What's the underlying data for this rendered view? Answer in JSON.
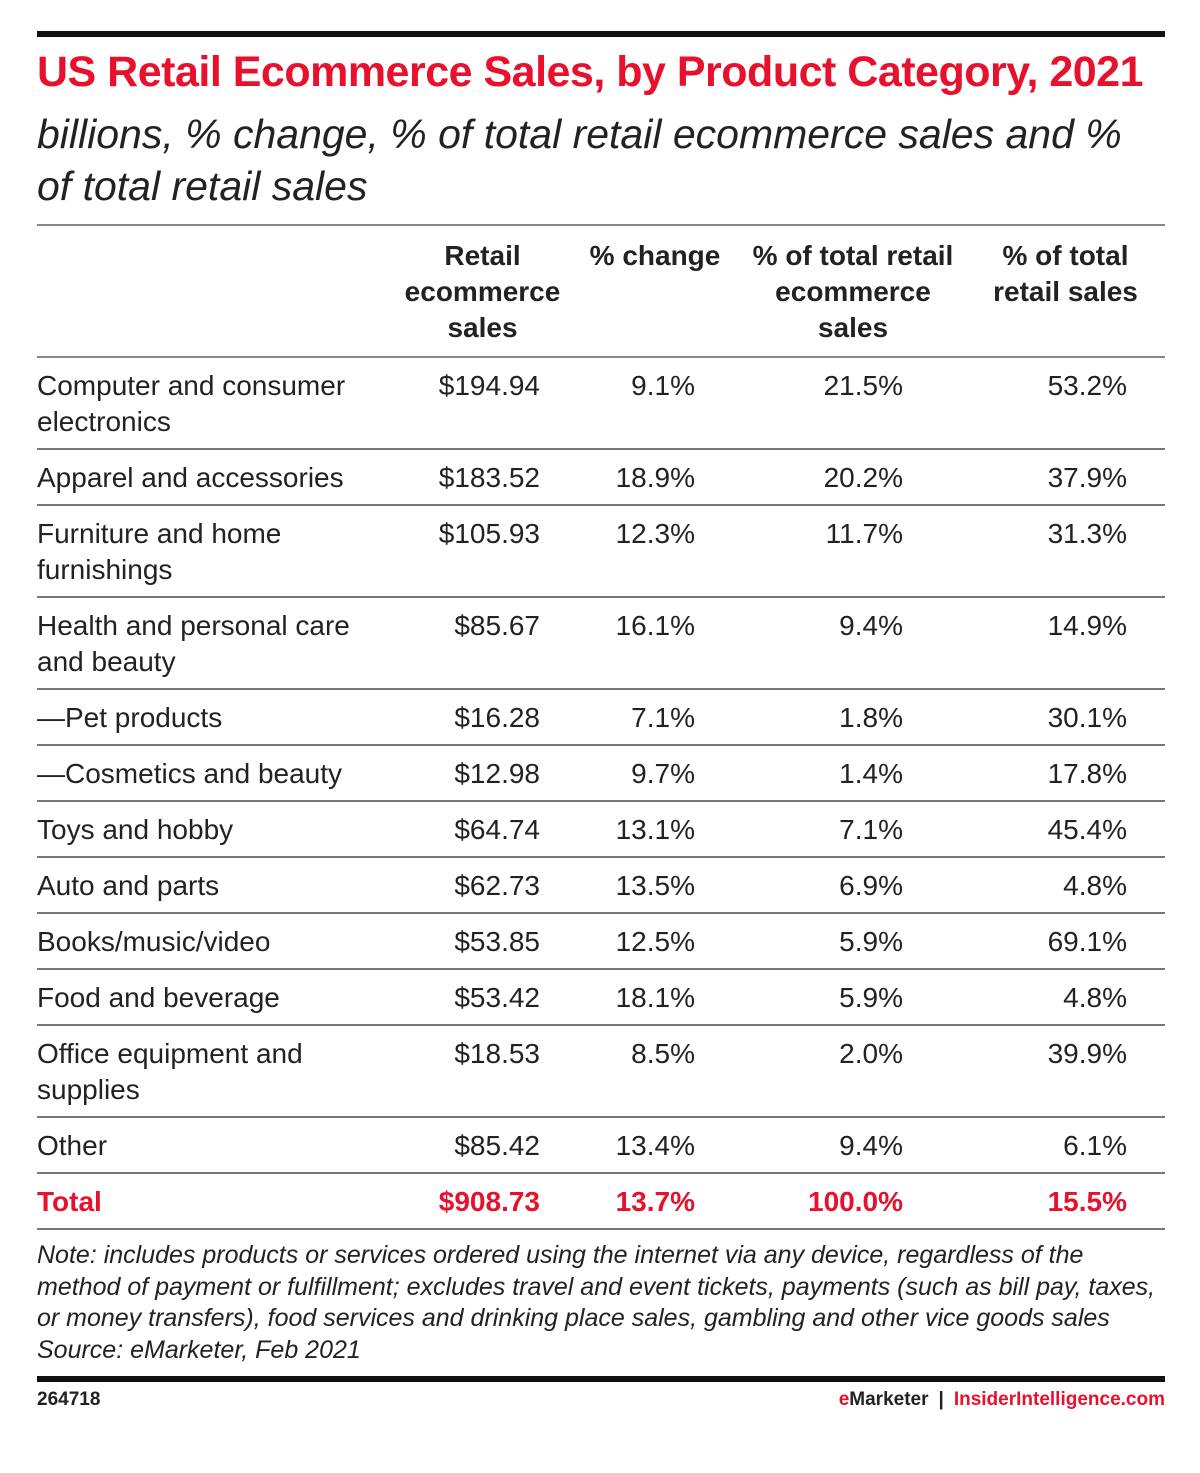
{
  "chart_data": {
    "type": "table",
    "title": "US Retail Ecommerce Sales, by Product Category, 2021",
    "subtitle": "billions, % change, % of total retail ecommerce sales and % of total retail sales",
    "columns": [
      "",
      "Retail ecommerce sales",
      "% change",
      "% of total retail ecommerce sales",
      "% of total retail sales"
    ],
    "rows": [
      [
        "Computer and consumer electronics",
        "$194.94",
        "9.1%",
        "21.5%",
        "53.2%"
      ],
      [
        "Apparel and accessories",
        "$183.52",
        "18.9%",
        "20.2%",
        "37.9%"
      ],
      [
        "Furniture and home furnishings",
        "$105.93",
        "12.3%",
        "11.7%",
        "31.3%"
      ],
      [
        "Health and personal care and beauty",
        "$85.67",
        "16.1%",
        "9.4%",
        "14.9%"
      ],
      [
        "—Pet products",
        "$16.28",
        "7.1%",
        "1.8%",
        "30.1%"
      ],
      [
        "—Cosmetics and beauty",
        "$12.98",
        "9.7%",
        "1.4%",
        "17.8%"
      ],
      [
        "Toys and hobby",
        "$64.74",
        "13.1%",
        "7.1%",
        "45.4%"
      ],
      [
        "Auto and parts",
        "$62.73",
        "13.5%",
        "6.9%",
        "4.8%"
      ],
      [
        "Books/music/video",
        "$53.85",
        "12.5%",
        "5.9%",
        "69.1%"
      ],
      [
        "Food and beverage",
        "$53.42",
        "18.1%",
        "5.9%",
        "4.8%"
      ],
      [
        "Office equipment and supplies",
        "$18.53",
        "8.5%",
        "2.0%",
        "39.9%"
      ],
      [
        "Other",
        "$85.42",
        "13.4%",
        "9.4%",
        "6.1%"
      ]
    ],
    "total": [
      "Total",
      "$908.73",
      "13.7%",
      "100.0%",
      "15.5%"
    ],
    "accent_color": "#e8112d"
  },
  "note": "Note: includes products or services ordered using the internet via any device, regardless of the method of payment or fulfillment; excludes travel and event tickets, payments (such as bill pay, taxes, or money transfers), food services and drinking place sales, gambling and other vice goods sales",
  "source": "Source: eMarketer, Feb 2021",
  "footer": {
    "id": "264718",
    "brand_left": "eMarketer",
    "separator": "|",
    "brand_right": "InsiderIntelligence.com"
  }
}
